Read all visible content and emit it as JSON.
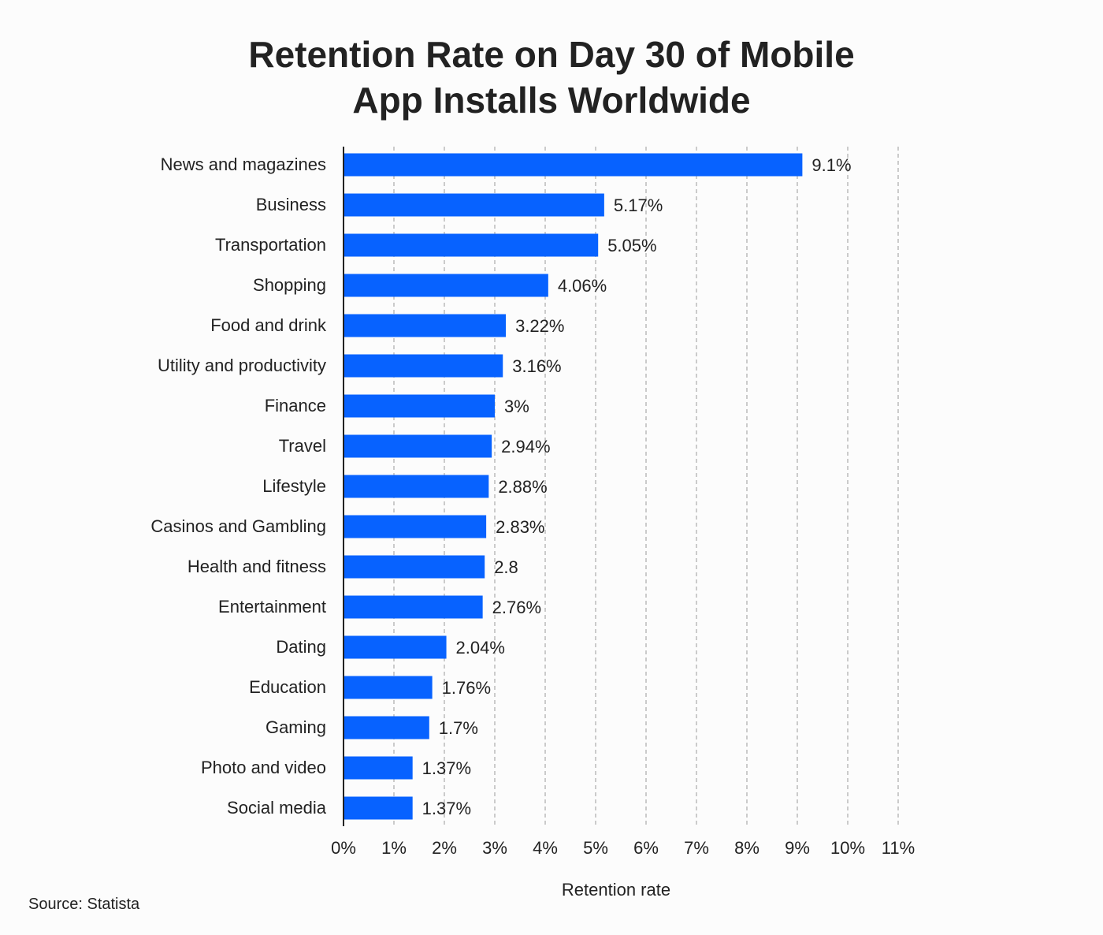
{
  "title_lines": [
    "Retention Rate on Day 30 of Mobile",
    "App Installs Worldwide"
  ],
  "source": "Source: Statista",
  "chart_data": {
    "type": "bar",
    "orientation": "horizontal",
    "categories": [
      "News and magazines",
      "Business",
      "Transportation",
      "Shopping",
      "Food and drink",
      "Utility and productivity",
      "Finance",
      "Travel",
      "Lifestyle",
      "Casinos and Gambling",
      "Health and fitness",
      "Entertainment",
      "Dating",
      "Education",
      "Gaming",
      "Photo and video",
      "Social media"
    ],
    "values": [
      9.1,
      5.17,
      5.05,
      4.06,
      3.22,
      3.16,
      3,
      2.94,
      2.88,
      2.83,
      2.8,
      2.76,
      2.04,
      1.76,
      1.7,
      1.37,
      1.37
    ],
    "data_labels": [
      "9.1%",
      "5.17%",
      "5.05%",
      "4.06%",
      "3.22%",
      "3.16%",
      "3%",
      "2.94%",
      "2.88%",
      "2.83%",
      "2.8",
      "2.76%",
      "2.04%",
      "1.76%",
      "1.7%",
      "1.37%",
      "1.37%"
    ],
    "xlabel": "Retention rate",
    "ylabel": "",
    "xlim": [
      0,
      11
    ],
    "xticks": [
      "0%",
      "1%",
      "2%",
      "3%",
      "4%",
      "5%",
      "6%",
      "7%",
      "8%",
      "9%",
      "10%",
      "11%"
    ],
    "grid": "vertical dashed",
    "bar_color": "#0762ff"
  }
}
